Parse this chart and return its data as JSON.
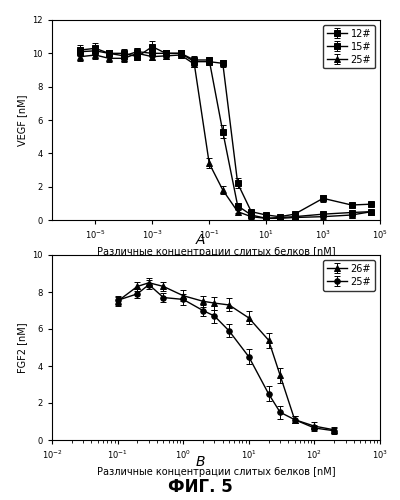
{
  "top_plot": {
    "ylabel": "VEGF [nM]",
    "xlabel": "Различные концентрации слитых белков [nM]",
    "label_A": "А",
    "ylim": [
      0,
      12
    ],
    "yticks": [
      0,
      2,
      4,
      6,
      8,
      10,
      12
    ],
    "xmin": 3e-07,
    "xmax": 100000.0,
    "series": [
      {
        "label": "12#",
        "marker": "s",
        "mfc": "black",
        "x": [
          3e-06,
          1e-05,
          3e-05,
          0.0001,
          0.0003,
          0.001,
          0.003,
          0.01,
          0.03,
          0.1,
          0.3,
          1,
          3,
          10,
          30,
          100,
          1000,
          10000,
          50000
        ],
        "y": [
          10.2,
          10.3,
          10.0,
          10.0,
          9.8,
          10.4,
          10.0,
          10.0,
          9.5,
          9.5,
          9.4,
          2.2,
          0.5,
          0.3,
          0.2,
          0.35,
          1.3,
          0.9,
          0.95
        ],
        "yerr": [
          0.3,
          0.3,
          0.2,
          0.25,
          0.2,
          0.35,
          0.2,
          0.2,
          0.2,
          0.2,
          0.2,
          0.3,
          0.1,
          0.1,
          0.08,
          0.1,
          0.2,
          0.1,
          0.1
        ]
      },
      {
        "label": "15#",
        "marker": "s",
        "mfc": "black",
        "x": [
          3e-06,
          1e-05,
          3e-05,
          0.0001,
          0.0003,
          0.001,
          0.003,
          0.01,
          0.03,
          0.1,
          0.3,
          1,
          3,
          10,
          30,
          100,
          1000,
          10000,
          50000
        ],
        "y": [
          10.1,
          10.15,
          10.0,
          9.85,
          10.1,
          10.0,
          10.0,
          10.0,
          9.6,
          9.6,
          5.3,
          0.85,
          0.3,
          0.1,
          0.15,
          0.2,
          0.35,
          0.45,
          0.5
        ],
        "yerr": [
          0.25,
          0.25,
          0.2,
          0.2,
          0.2,
          0.2,
          0.2,
          0.2,
          0.25,
          0.2,
          0.4,
          0.15,
          0.08,
          0.06,
          0.05,
          0.07,
          0.08,
          0.1,
          0.1
        ]
      },
      {
        "label": "25#",
        "marker": "^",
        "mfc": "black",
        "x": [
          3e-06,
          1e-05,
          3e-05,
          0.0001,
          0.0003,
          0.001,
          0.003,
          0.01,
          0.03,
          0.1,
          0.3,
          1,
          3,
          10,
          30,
          100,
          1000,
          10000,
          50000
        ],
        "y": [
          9.8,
          9.9,
          9.7,
          9.7,
          10.0,
          9.8,
          9.85,
          9.9,
          9.35,
          3.4,
          1.8,
          0.5,
          0.2,
          0.1,
          0.1,
          0.15,
          0.2,
          0.3,
          0.5
        ],
        "yerr": [
          0.25,
          0.25,
          0.2,
          0.2,
          0.3,
          0.2,
          0.2,
          0.2,
          0.2,
          0.3,
          0.25,
          0.1,
          0.07,
          0.06,
          0.05,
          0.07,
          0.07,
          0.1,
          0.1
        ]
      }
    ]
  },
  "bottom_plot": {
    "ylabel": "FGF2 [nM]",
    "xlabel": "Различные концентрации слитых белков [nM]",
    "label_B": "В",
    "ylim": [
      0,
      10
    ],
    "yticks": [
      0,
      2,
      4,
      6,
      8,
      10
    ],
    "xmin": 0.01,
    "xmax": 1000,
    "series": [
      {
        "label": "26#",
        "marker": "^",
        "mfc": "black",
        "x": [
          0.1,
          0.2,
          0.3,
          0.5,
          1,
          2,
          3,
          5,
          10,
          20,
          30,
          50,
          100,
          200
        ],
        "y": [
          7.5,
          8.3,
          8.5,
          8.3,
          7.8,
          7.5,
          7.4,
          7.3,
          6.6,
          5.4,
          3.5,
          1.1,
          0.75,
          0.55
        ],
        "yerr": [
          0.25,
          0.25,
          0.25,
          0.25,
          0.3,
          0.3,
          0.35,
          0.35,
          0.35,
          0.4,
          0.4,
          0.2,
          0.2,
          0.15
        ]
      },
      {
        "label": "25#",
        "marker": "o",
        "mfc": "black",
        "x": [
          0.1,
          0.2,
          0.3,
          0.5,
          1,
          2,
          3,
          5,
          10,
          20,
          30,
          50,
          100,
          200
        ],
        "y": [
          7.55,
          7.9,
          8.4,
          7.7,
          7.6,
          7.0,
          6.7,
          5.9,
          4.5,
          2.5,
          1.5,
          1.1,
          0.65,
          0.5
        ],
        "yerr": [
          0.25,
          0.25,
          0.25,
          0.25,
          0.3,
          0.3,
          0.35,
          0.35,
          0.4,
          0.4,
          0.35,
          0.2,
          0.15,
          0.15
        ]
      }
    ]
  },
  "fig_label": "ФИГ. 5",
  "color": "#000000",
  "linewidth": 1.0,
  "markersize": 4,
  "fontsize_label": 7,
  "fontsize_tick": 6,
  "fontsize_legend": 7,
  "fontsize_figlabel": 12
}
